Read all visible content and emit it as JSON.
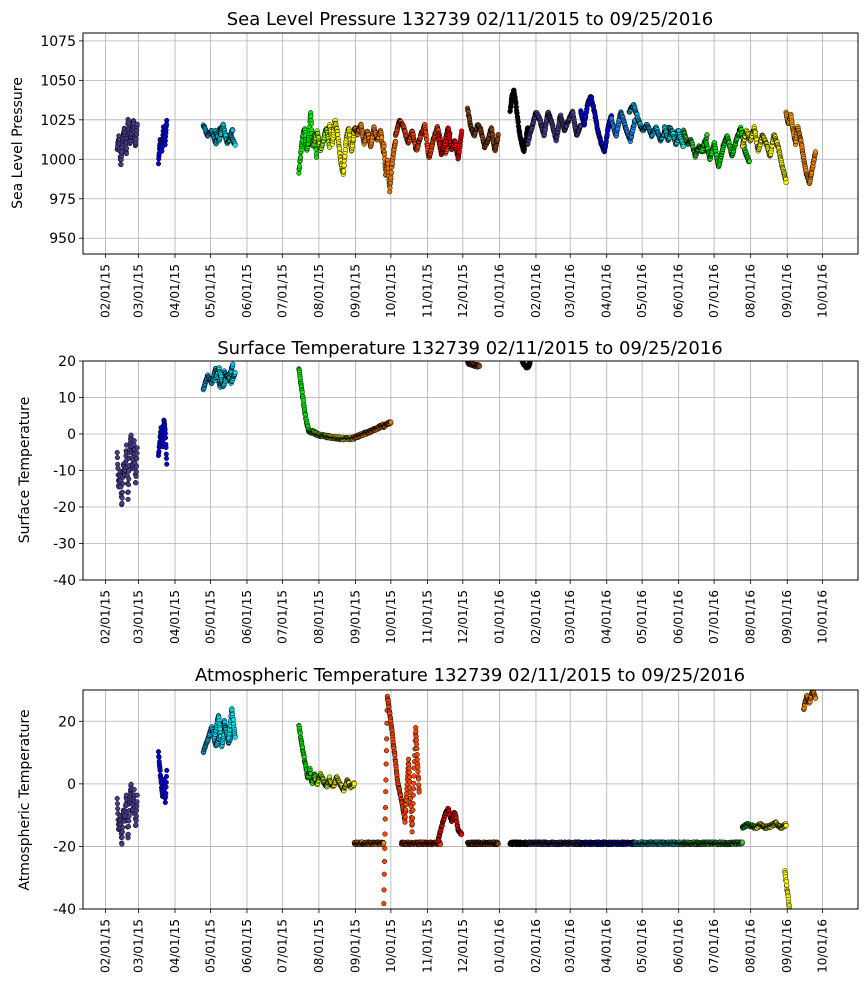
{
  "chart_data": [
    {
      "type": "scatter",
      "title": "Sea Level Pressure 132739  02/11/2015 to 09/25/2016",
      "xlabel": "",
      "ylabel": "Sea Level Pressure",
      "xlim": [
        "2015-01-13",
        "2016-10-31"
      ],
      "ylim": [
        940,
        1080
      ],
      "yticks": [
        950,
        975,
        1000,
        1025,
        1050,
        1075
      ],
      "xticks": [
        "02/01/15",
        "03/01/15",
        "04/01/15",
        "05/01/15",
        "06/01/15",
        "07/01/15",
        "08/01/15",
        "09/01/15",
        "10/01/15",
        "11/01/15",
        "12/01/15",
        "01/01/16",
        "02/01/16",
        "03/01/16",
        "04/01/16",
        "05/01/16",
        "06/01/16",
        "07/01/16",
        "08/01/16",
        "09/01/16",
        "10/01/16"
      ],
      "grid": true,
      "segments": [
        {
          "start": "2015-02-11",
          "end": "2015-02-28",
          "color": "#483d8b",
          "values": [
            1006,
            1015,
            996,
            1012,
            1020,
            1003,
            1026,
            1010,
            1018,
            1025,
            1008,
            1022
          ]
        },
        {
          "start": "2015-03-18",
          "end": "2015-03-25",
          "color": "#0000dd",
          "values": [
            998,
            1012,
            1005,
            1020,
            1010,
            1024
          ]
        },
        {
          "start": "2015-04-25",
          "end": "2015-05-20",
          "color": "#00bfff",
          "values": [
            1022,
            1015,
            1018,
            1010,
            1020,
            1016,
            1012,
            1019
          ]
        },
        {
          "start": "2015-05-05",
          "end": "2015-05-22",
          "color": "#00e5ee",
          "values": [
            1018,
            1012,
            1022,
            1010,
            1014,
            1009
          ]
        },
        {
          "start": "2015-07-15",
          "end": "2015-07-30",
          "color": "#00ee00",
          "values": [
            992,
            1004,
            1015,
            1020,
            1006,
            1012,
            1030,
            1008,
            1016,
            1002
          ]
        },
        {
          "start": "2015-07-28",
          "end": "2015-08-10",
          "color": "#aaff00",
          "values": [
            1010,
            1018,
            1005,
            1012,
            1020,
            1008
          ]
        },
        {
          "start": "2015-08-10",
          "end": "2015-08-31",
          "color": "#ffff00",
          "values": [
            1022,
            1010,
            1025,
            1015,
            1000,
            990,
            1012,
            1020,
            1005,
            1018
          ]
        },
        {
          "start": "2015-08-31",
          "end": "2015-09-25",
          "color": "#ff8c00",
          "values": [
            1020,
            1016,
            1022,
            1010,
            1018,
            1008,
            1020,
            1012,
            1018,
            1004
          ]
        },
        {
          "start": "2015-09-25",
          "end": "2015-10-05",
          "color": "#f07800",
          "values": [
            1010,
            990,
            1000,
            980,
            995,
            1005,
            1012
          ]
        },
        {
          "start": "2015-10-05",
          "end": "2015-11-20",
          "color": "#ff4500",
          "values": [
            1015,
            1025,
            1020,
            1010,
            1018,
            1005,
            1015,
            1022,
            1000,
            1012,
            1020,
            1010,
            1004,
            1016
          ]
        },
        {
          "start": "2015-11-10",
          "end": "2015-11-30",
          "color": "#ee0000",
          "values": [
            1015,
            1003,
            1010,
            1020,
            1006,
            1012,
            1000,
            1018
          ]
        },
        {
          "start": "2015-12-05",
          "end": "2015-12-31",
          "color": "#8b4513",
          "values": [
            1032,
            1020,
            1015,
            1022,
            1018,
            1008,
            1012,
            1020,
            1005,
            1015
          ]
        },
        {
          "start": "2016-01-10",
          "end": "2016-01-25",
          "color": "#000000",
          "values": [
            1030,
            1040,
            1044,
            1035,
            1025,
            1015,
            1010,
            1005,
            1012,
            1020
          ]
        },
        {
          "start": "2016-01-25",
          "end": "2016-03-10",
          "color": "#483d8b",
          "values": [
            1010,
            1020,
            1030,
            1025,
            1015,
            1030,
            1022,
            1012,
            1028,
            1018,
            1025,
            1030,
            1015,
            1022
          ]
        },
        {
          "start": "2016-03-10",
          "end": "2016-04-05",
          "color": "#0000ee",
          "values": [
            1030,
            1022,
            1035,
            1040,
            1030,
            1018,
            1010,
            1005,
            1020,
            1028
          ]
        },
        {
          "start": "2016-04-05",
          "end": "2016-04-25",
          "color": "#1e90ff",
          "values": [
            1025,
            1015,
            1030,
            1020,
            1012,
            1025
          ]
        },
        {
          "start": "2016-04-20",
          "end": "2016-06-01",
          "color": "#00bfff",
          "values": [
            1030,
            1035,
            1025,
            1018,
            1022,
            1015,
            1020,
            1012,
            1018,
            1020,
            1015,
            1018
          ]
        },
        {
          "start": "2016-05-20",
          "end": "2016-06-05",
          "color": "#00eeee",
          "values": [
            1020,
            1012,
            1018,
            1010,
            1015,
            1008
          ]
        },
        {
          "start": "2016-06-05",
          "end": "2016-06-25",
          "color": "#32cd32",
          "values": [
            1018,
            1010,
            1012,
            1002,
            1008,
            1005,
            1015
          ]
        },
        {
          "start": "2016-06-20",
          "end": "2016-07-31",
          "color": "#00ee00",
          "values": [
            1005,
            1012,
            1000,
            1010,
            995,
            1008,
            1015,
            1002,
            1012,
            1020,
            1005,
            998
          ]
        },
        {
          "start": "2016-07-25",
          "end": "2016-08-31",
          "color": "#ffff00",
          "values": [
            1008,
            1018,
            1012,
            1020,
            1005,
            1015,
            1010,
            1002,
            1016,
            1008,
            996,
            986
          ]
        },
        {
          "start": "2016-08-31",
          "end": "2016-09-10",
          "color": "#ffa500",
          "values": [
            1030,
            1022,
            1028,
            1018,
            1010,
            1020
          ]
        },
        {
          "start": "2016-09-10",
          "end": "2016-09-25",
          "color": "#ff8c00",
          "values": [
            1020,
            1012,
            1000,
            990,
            985,
            995,
            1005
          ]
        }
      ]
    },
    {
      "type": "scatter",
      "title": "Surface Temperature 132739  02/11/2015 to 09/25/2016",
      "xlabel": "",
      "ylabel": "Surface Temperature",
      "xlim": [
        "2015-01-13",
        "2016-10-31"
      ],
      "ylim": [
        -40,
        20
      ],
      "yticks": [
        -40,
        -30,
        -20,
        -10,
        0,
        10,
        20
      ],
      "xticks": [
        "02/01/15",
        "03/01/15",
        "04/01/15",
        "05/01/15",
        "06/01/15",
        "07/01/15",
        "08/01/15",
        "09/01/15",
        "10/01/15",
        "11/01/15",
        "12/01/15",
        "01/01/16",
        "02/01/16",
        "03/01/16",
        "04/01/16",
        "05/01/16",
        "06/01/16",
        "07/01/16",
        "08/01/16",
        "09/01/16",
        "10/01/16"
      ],
      "grid": true,
      "segments": [
        {
          "start": "2015-02-11",
          "end": "2015-02-28",
          "color": "#483d8b",
          "values": [
            -5,
            -15,
            -10,
            -20,
            -8,
            -12,
            -3,
            -18,
            -6,
            0,
            -10,
            -2,
            -14,
            -4
          ]
        },
        {
          "start": "2015-03-18",
          "end": "2015-03-25",
          "color": "#0000dd",
          "values": [
            -6,
            -2,
            2,
            -4,
            4,
            0,
            -8
          ]
        },
        {
          "start": "2015-04-25",
          "end": "2015-05-20",
          "color": "#00bfff",
          "values": [
            12,
            16,
            14,
            18,
            13,
            17,
            15,
            19
          ]
        },
        {
          "start": "2015-05-05",
          "end": "2015-05-22",
          "color": "#00e5ee",
          "values": [
            15,
            18,
            13,
            16,
            14,
            17
          ]
        },
        {
          "start": "2015-07-15",
          "end": "2015-07-30",
          "color": "#00ee00",
          "values": [
            18,
            14,
            10,
            6,
            3,
            1,
            0.5,
            0.8,
            0.3,
            0.1
          ]
        },
        {
          "start": "2015-07-28",
          "end": "2015-08-10",
          "color": "#aaff00",
          "values": [
            0.2,
            -0.2,
            -0.4,
            -0.5,
            -0.7,
            -0.8
          ]
        },
        {
          "start": "2015-08-10",
          "end": "2015-08-31",
          "color": "#ffff00",
          "values": [
            -0.8,
            -1,
            -1.1,
            -1.2,
            -1.3,
            -1.2,
            -1.1
          ]
        },
        {
          "start": "2015-08-31",
          "end": "2015-09-25",
          "color": "#ff8c00",
          "values": [
            -1,
            -0.6,
            -0.2,
            0.2,
            0.6,
            1,
            1.5,
            2,
            2.5
          ]
        },
        {
          "start": "2015-09-25",
          "end": "2015-10-01",
          "color": "#f07800",
          "values": [
            2,
            2.8,
            3.2
          ]
        },
        {
          "start": "2015-12-05",
          "end": "2015-12-15",
          "color": "#8b4513",
          "values": [
            19.5,
            18.5
          ]
        },
        {
          "start": "2016-01-20",
          "end": "2016-01-27",
          "color": "#000000",
          "values": [
            20,
            19,
            18,
            19.5
          ]
        }
      ]
    },
    {
      "type": "scatter",
      "title": "Atmospheric Temperature 132739  02/11/2015 to 09/25/2016",
      "xlabel": "",
      "ylabel": "Atmospheric Temperature",
      "xlim": [
        "2015-01-13",
        "2016-10-31"
      ],
      "ylim": [
        -40,
        30
      ],
      "yticks": [
        -40,
        -20,
        0,
        20
      ],
      "xticks": [
        "02/01/15",
        "03/01/15",
        "04/01/15",
        "05/01/15",
        "06/01/15",
        "07/01/15",
        "08/01/15",
        "09/01/15",
        "10/01/15",
        "11/01/15",
        "12/01/15",
        "01/01/16",
        "02/01/16",
        "03/01/16",
        "04/01/16",
        "05/01/16",
        "06/01/16",
        "07/01/16",
        "08/01/16",
        "09/01/16",
        "10/01/16"
      ],
      "grid": true,
      "segments": [
        {
          "start": "2015-02-11",
          "end": "2015-02-28",
          "color": "#483d8b",
          "values": [
            -5,
            -15,
            -10,
            -20,
            -8,
            -12,
            -3,
            -18,
            -6,
            0,
            -10,
            -2,
            -14,
            -4
          ]
        },
        {
          "start": "2015-03-18",
          "end": "2015-03-25",
          "color": "#0000dd",
          "values": [
            10,
            5,
            0,
            -4,
            2,
            -6,
            4
          ]
        },
        {
          "start": "2015-04-25",
          "end": "2015-05-20",
          "color": "#00bfff",
          "values": [
            10,
            14,
            18,
            12,
            16,
            20,
            13,
            17
          ]
        },
        {
          "start": "2015-05-05",
          "end": "2015-05-22",
          "color": "#00e5ee",
          "values": [
            16,
            22,
            12,
            18,
            14,
            24,
            15
          ]
        },
        {
          "start": "2015-07-15",
          "end": "2015-07-30",
          "color": "#00ee00",
          "values": [
            19,
            14,
            10,
            6,
            2,
            5,
            0,
            3,
            1
          ]
        },
        {
          "start": "2015-07-28",
          "end": "2015-08-10",
          "color": "#aaff00",
          "values": [
            2,
            0,
            3,
            1,
            -1,
            2
          ]
        },
        {
          "start": "2015-08-10",
          "end": "2015-08-31",
          "color": "#ffff00",
          "values": [
            1,
            -1,
            2,
            0,
            -2,
            1,
            -1,
            0
          ]
        },
        {
          "start": "2015-08-31",
          "end": "2015-09-25",
          "color": "#ff8c00",
          "values": [
            -19,
            -19,
            -19,
            -19,
            -19,
            -19,
            -19
          ]
        },
        {
          "start": "2015-09-25",
          "end": "2015-10-25",
          "color": "#ff4500",
          "values": [
            -38,
            28,
            20,
            10,
            0,
            -5,
            -12,
            8,
            -15,
            18,
            -3
          ]
        },
        {
          "start": "2015-10-10",
          "end": "2015-11-12",
          "color": "#ff4500",
          "values": [
            -19,
            -19,
            -19,
            -19,
            -19,
            -19,
            -19,
            -19
          ]
        },
        {
          "start": "2015-11-10",
          "end": "2015-11-30",
          "color": "#ee0000",
          "values": [
            -18,
            -14,
            -10,
            -8,
            -12,
            -9,
            -15,
            -16
          ]
        },
        {
          "start": "2015-12-05",
          "end": "2015-12-31",
          "color": "#8b4513",
          "values": [
            -19,
            -19,
            -19,
            -19,
            -19,
            -19
          ]
        },
        {
          "start": "2016-01-10",
          "end": "2016-01-25",
          "color": "#000000",
          "values": [
            -19,
            -19,
            -19,
            -19,
            -19,
            -19
          ]
        },
        {
          "start": "2016-01-25",
          "end": "2016-03-10",
          "color": "#483d8b",
          "values": [
            -19,
            -19,
            -19,
            -19,
            -19,
            -19,
            -19
          ]
        },
        {
          "start": "2016-03-10",
          "end": "2016-04-25",
          "color": "#0000ee",
          "values": [
            -19,
            -19,
            -19,
            -19,
            -19,
            -19,
            -19
          ]
        },
        {
          "start": "2016-04-25",
          "end": "2016-06-05",
          "color": "#00eeee",
          "values": [
            -19,
            -19,
            -19,
            -19,
            -19,
            -19,
            -19
          ]
        },
        {
          "start": "2016-06-05",
          "end": "2016-07-25",
          "color": "#32cd32",
          "values": [
            -19,
            -19,
            -19,
            -19,
            -19,
            -19,
            -19
          ]
        },
        {
          "start": "2016-07-25",
          "end": "2016-08-10",
          "color": "#00ee00",
          "values": [
            -14,
            -13,
            -13.5,
            -14,
            -13
          ]
        },
        {
          "start": "2016-08-05",
          "end": "2016-08-31",
          "color": "#ffff00",
          "values": [
            -14,
            -13,
            -14,
            -13.5,
            -12.5,
            -14,
            -13
          ]
        },
        {
          "start": "2016-08-30",
          "end": "2016-09-03",
          "color": "#ffff00",
          "values": [
            -28,
            -32,
            -36,
            -40
          ]
        },
        {
          "start": "2016-09-15",
          "end": "2016-09-25",
          "color": "#ff8c00",
          "values": [
            24,
            28,
            26,
            30,
            27
          ]
        }
      ]
    }
  ]
}
